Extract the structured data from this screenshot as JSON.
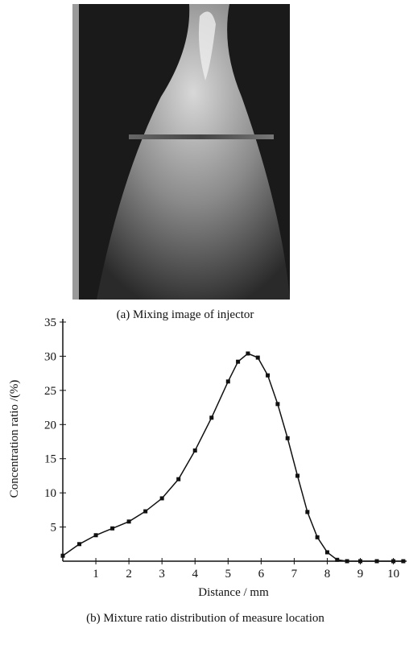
{
  "figure_a": {
    "caption": "(a) Mixing image of injector"
  },
  "chart_data": {
    "type": "line",
    "caption": "(b) Mixture ratio distribution of measure location",
    "x_label": "Distance / mm",
    "y_label": "Concentration ratio /(%)",
    "x": [
      0,
      0.5,
      1,
      1.5,
      2,
      2.5,
      3,
      3.5,
      4,
      4.5,
      5,
      5.3,
      5.6,
      5.9,
      6.2,
      6.5,
      6.8,
      7.1,
      7.4,
      7.7,
      8,
      8.3,
      8.6,
      9,
      9.5,
      10,
      10.3
    ],
    "series": [
      {
        "color": "#111111",
        "values": [
          0.8,
          2.5,
          3.8,
          4.8,
          5.8,
          7.3,
          9.2,
          12,
          16.2,
          21,
          26.3,
          29.2,
          30.4,
          29.8,
          27.2,
          23,
          18,
          12.5,
          7.2,
          3.5,
          1.3,
          0.2,
          0,
          0,
          0,
          0,
          0
        ]
      }
    ],
    "xlim": [
      0,
      10.4
    ],
    "ylim": [
      0,
      35
    ],
    "xticks": [
      1,
      2,
      3,
      4,
      5,
      6,
      7,
      8,
      9,
      10
    ],
    "yticks": [
      5,
      10,
      15,
      20,
      25,
      30,
      35
    ],
    "markers": true
  }
}
